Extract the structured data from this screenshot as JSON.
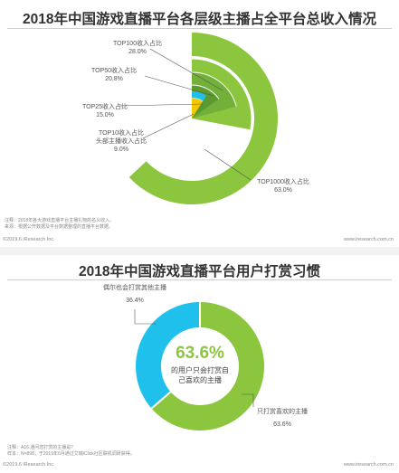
{
  "chart1": {
    "title": "2018年中国游戏直播平台各层级主播占全平台总收入情况",
    "note_lines": [
      "注释：2018年各大游戏直播平台主播礼物的名义收入。",
      "来源：根据公开数据及平台数据整理的直播平台数据。"
    ],
    "copyright": "©2019.6 iResearch Inc.",
    "site": "www.iresearch.com.cn"
  },
  "chart2": {
    "title": "2018年中国游戏直播平台用户打赏习惯",
    "center_value": "63.6%",
    "center_text_lines": [
      "的用户只会打赏自",
      "己喜欢的主播"
    ],
    "note_lines": [
      "注释：A16.通问您打赏的主播是？",
      "样本：N=898；于2019年6月通过艾瑞iClick社区联机调研获得。"
    ],
    "copyright": "©2019.6 iResearch Inc.",
    "site": "www.iresearch.com.cn"
  },
  "colors": {
    "green": "#8cc63f",
    "green_mid": "#73b03a",
    "green_dark": "#5a9a30",
    "blue": "#1fc0ec",
    "yellow": "#f6c800"
  },
  "chart_data": [
    {
      "type": "pie",
      "title": "2018年中国游戏直播平台各层级主播占全平台总收入情况",
      "rings": [
        {
          "label": "TOP1000收入占比",
          "value": 63.0
        },
        {
          "label": "TOP100收入占比",
          "value": 28.0
        },
        {
          "label": "TOP50收入占比",
          "value": 20.8
        },
        {
          "label": "TOP25收入占比",
          "value": 15.0
        },
        {
          "label": "TOP10收入占比 头部主播收入占比",
          "value": 9.0
        }
      ],
      "labels": [
        {
          "name": "TOP100收入占比",
          "pct": "28.0%"
        },
        {
          "name": "TOP50收入占比",
          "pct": "20.8%"
        },
        {
          "name": "TOP25收入占比",
          "pct": "15.0%"
        },
        {
          "name": "TOP10收入占比",
          "name2": "头部主播收入占比",
          "pct": "9.0%"
        },
        {
          "name": "TOP1000收入占比",
          "pct": "63.0%"
        }
      ]
    },
    {
      "type": "pie",
      "title": "2018年中国游戏直播平台用户打赏习惯",
      "slices": [
        {
          "label": "只打赏喜欢的主播",
          "value": 63.6,
          "pct": "63.6%"
        },
        {
          "label": "偶尔也会打赏其他主播",
          "value": 36.4,
          "pct": "36.4%"
        }
      ]
    }
  ]
}
